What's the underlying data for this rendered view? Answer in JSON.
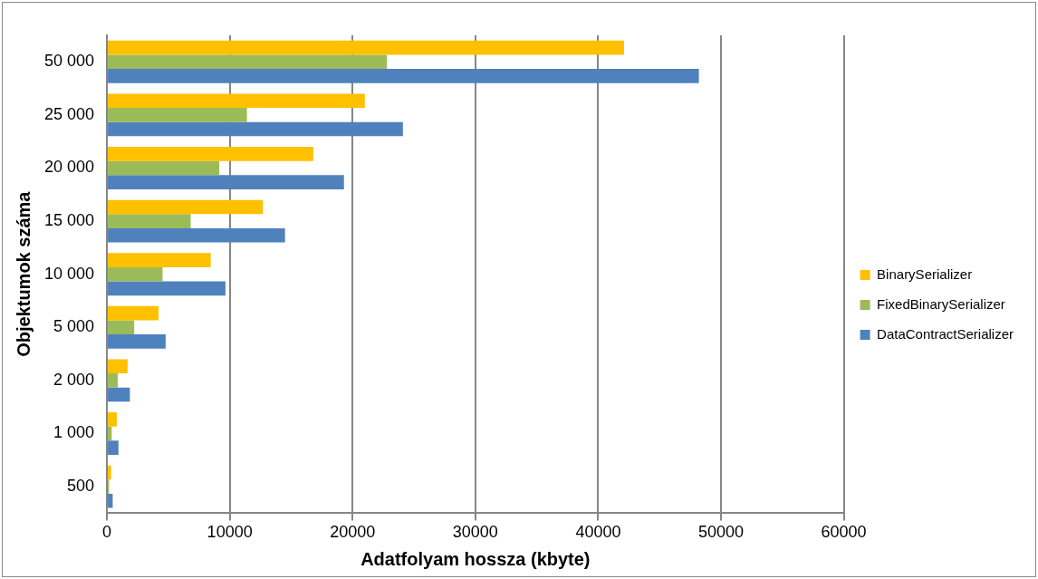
{
  "chart_data": {
    "type": "bar",
    "orientation": "horizontal",
    "xlabel": "Adatfolyam hossza (kbyte)",
    "ylabel": "Objektumok száma",
    "categories": [
      "50 000",
      "25 000",
      "20 000",
      "15 000",
      "10 000",
      "5 000",
      "2 000",
      "1 000",
      "500"
    ],
    "series": [
      {
        "name": "BinarySerializer",
        "color": "#ffc000",
        "values": [
          42100,
          21000,
          16800,
          12700,
          8450,
          4200,
          1680,
          800,
          340
        ]
      },
      {
        "name": "FixedBinarySerializer",
        "color": "#9bbb59",
        "values": [
          22800,
          11400,
          9150,
          6820,
          4530,
          2220,
          880,
          390,
          170
        ]
      },
      {
        "name": "DataContractSerializer",
        "color": "#4f81bd",
        "values": [
          48200,
          24100,
          19300,
          14500,
          9650,
          4780,
          1870,
          940,
          470
        ]
      }
    ],
    "xlim": [
      0,
      60000
    ],
    "xticks": [
      0,
      10000,
      20000,
      30000,
      40000,
      50000,
      60000
    ],
    "grid": "x",
    "legend": "right"
  }
}
